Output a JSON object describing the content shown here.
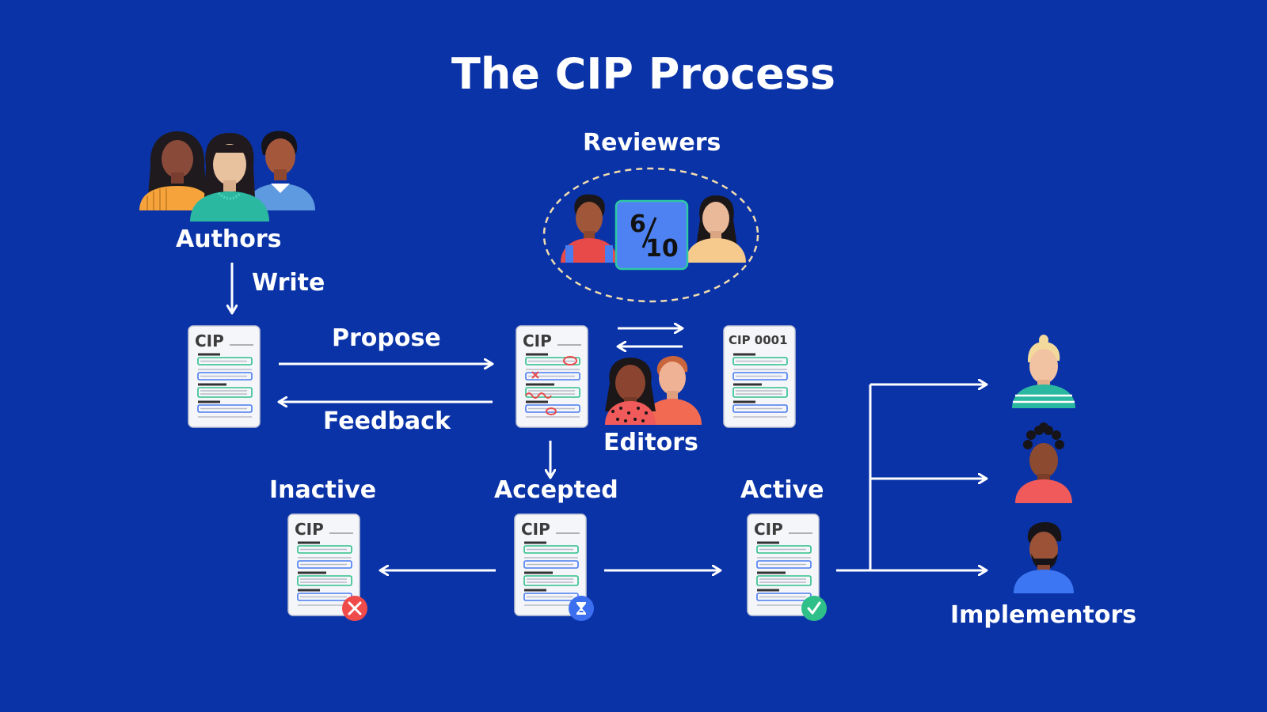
{
  "title": "The CIP Process",
  "labels": {
    "authors": "Authors",
    "write": "Write",
    "reviewers": "Reviewers",
    "propose": "Propose",
    "feedback": "Feedback",
    "editors": "Editors",
    "inactive": "Inactive",
    "accepted": "Accepted",
    "active": "Active",
    "implementors": "Implementors"
  },
  "documents": {
    "draft": "CIP",
    "review": "CIP",
    "numbered": "CIP 0001",
    "inactive": "CIP",
    "accepted": "CIP",
    "active": "CIP"
  },
  "review_score": {
    "numerator": "6",
    "denominator": "10"
  },
  "status_icons": {
    "inactive": "x-circle-icon",
    "accepted": "hourglass-icon",
    "active": "check-circle-icon"
  },
  "colors": {
    "background": "#0a33a8",
    "text": "#ffffff",
    "reject": "#ef4b4b",
    "pending": "#3c6ff0",
    "approve": "#2fc08a",
    "score_box": "#4e82f3",
    "score_border": "#2cc9a3"
  }
}
